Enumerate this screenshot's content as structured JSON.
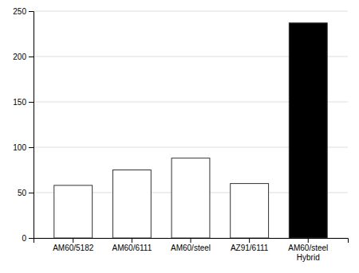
{
  "chart_data": {
    "type": "bar",
    "categories": [
      "AM60/5182",
      "AM60/6111",
      "AM60/steel",
      "AZ91/6111",
      "AM60/steel\nHybrid"
    ],
    "values": [
      58,
      75,
      88,
      60,
      237
    ],
    "colors": [
      "#ffffff",
      "#ffffff",
      "#ffffff",
      "#ffffff",
      "#000000"
    ],
    "ylim": [
      0,
      250
    ],
    "yticks": [
      0,
      50,
      100,
      150,
      200,
      250
    ],
    "grid": true
  }
}
